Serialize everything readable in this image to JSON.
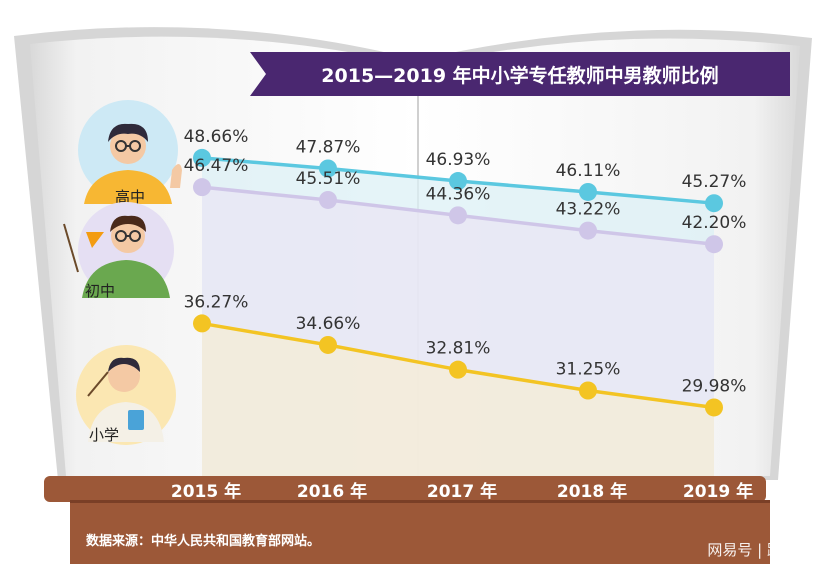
{
  "chart_data": {
    "type": "line",
    "title": "2015—2019 年中小学专任教师中男教师比例",
    "x": [
      "2015 年",
      "2016 年",
      "2017 年",
      "2018 年",
      "2019 年"
    ],
    "series": [
      {
        "name": "高中",
        "values": [
          48.66,
          47.87,
          46.93,
          46.11,
          45.27
        ],
        "labels": [
          "48.66%",
          "47.87%",
          "46.93%",
          "46.11%",
          "45.27%"
        ],
        "color": "#5bc8e0",
        "fill": "#dcf0f6"
      },
      {
        "name": "初中",
        "values": [
          46.47,
          45.51,
          44.36,
          43.22,
          42.2
        ],
        "labels": [
          "46.47%",
          "45.51%",
          "44.36%",
          "43.22%",
          "42.20%"
        ],
        "color": "#cfc6e8",
        "fill": "#e9e5f4"
      },
      {
        "name": "小学",
        "values": [
          36.27,
          34.66,
          32.81,
          31.25,
          29.98
        ],
        "labels": [
          "36.27%",
          "34.66%",
          "32.81%",
          "31.25%",
          "29.98%"
        ],
        "color": "#f3c423",
        "fill": "#f6ecd4"
      }
    ],
    "legend": "left",
    "grid": false
  },
  "source_note": "数据来源：中华人民共和国教育部网站。",
  "watermark": "网易号 | 路道原",
  "colors": {
    "banner": "#4a2770",
    "shelf": "#9c5838",
    "shelf_dark": "#7a3f26",
    "book_page": "#ececec",
    "book_shadow": "#cfcfcf"
  }
}
